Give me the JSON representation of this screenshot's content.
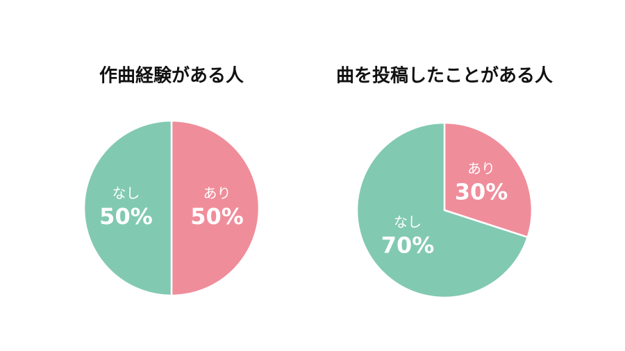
{
  "chart_data": [
    {
      "type": "pie",
      "title": "作曲経験がある人",
      "categories": [
        "あり",
        "なし"
      ],
      "values": [
        50,
        50
      ],
      "value_labels": [
        "50%",
        "50%"
      ],
      "colors": [
        "#f08d9b",
        "#82c9b2"
      ]
    },
    {
      "type": "pie",
      "title": "曲を投稿したことがある人",
      "categories": [
        "あり",
        "なし"
      ],
      "values": [
        30,
        70
      ],
      "value_labels": [
        "30%",
        "70%"
      ],
      "colors": [
        "#f08d9b",
        "#82c9b2"
      ]
    }
  ]
}
